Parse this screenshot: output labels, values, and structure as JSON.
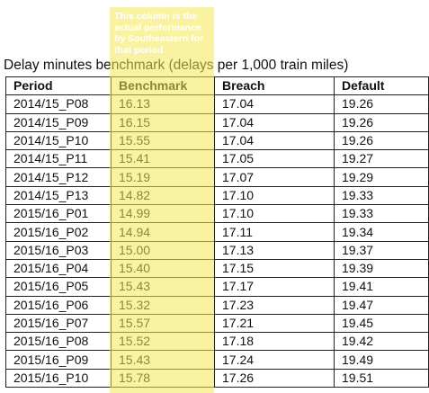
{
  "title": "Delay minutes benchmark (delays per 1,000 train miles)",
  "note": "This column is the actual performance by Southeastern for that period",
  "highlight_color": "#f4e852",
  "table": {
    "headers": [
      "Period",
      "Benchmark",
      "Breach",
      "Default"
    ],
    "rows": [
      [
        "2014/15_P08",
        "16.13",
        "17.04",
        "19.26"
      ],
      [
        "2014/15_P09",
        "16.15",
        "17.04",
        "19.26"
      ],
      [
        "2014/15_P10",
        "15.55",
        "17.04",
        "19.26"
      ],
      [
        "2014/15_P11",
        "15.41",
        "17.05",
        "19.27"
      ],
      [
        "2014/15_P12",
        "15.19",
        "17.07",
        "19.29"
      ],
      [
        "2014/15_P13",
        "14.82",
        "17.10",
        "19.33"
      ],
      [
        "2015/16_P01",
        "14.99",
        "17.10",
        "19.33"
      ],
      [
        "2015/16_P02",
        "14.94",
        "17.11",
        "19.34"
      ],
      [
        "2015/16_P03",
        "15.00",
        "17.13",
        "19.37"
      ],
      [
        "2015/16_P04",
        "15.40",
        "17.15",
        "19.39"
      ],
      [
        "2015/16_P05",
        "15.43",
        "17.17",
        "19.41"
      ],
      [
        "2015/16_P06",
        "15.32",
        "17.23",
        "19.47"
      ],
      [
        "2015/16_P07",
        "15.57",
        "17.21",
        "19.45"
      ],
      [
        "2015/16_P08",
        "15.52",
        "17.18",
        "19.42"
      ],
      [
        "2015/16_P09",
        "15.43",
        "17.24",
        "19.49"
      ],
      [
        "2015/16_P10",
        "15.78",
        "17.26",
        "19.51"
      ]
    ]
  }
}
